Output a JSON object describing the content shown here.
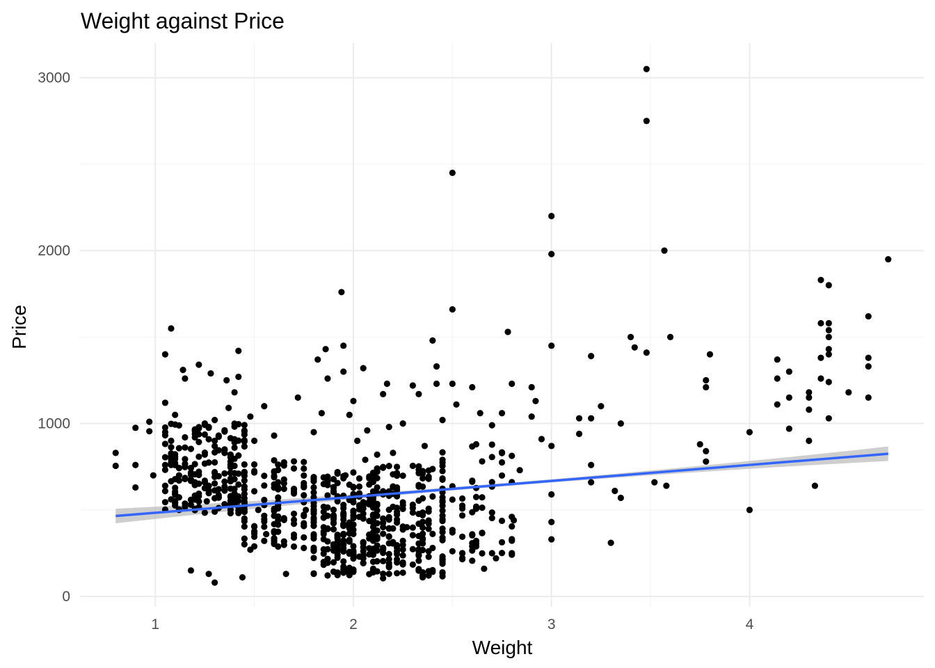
{
  "chart_data": {
    "type": "scatter",
    "title": "Weight against Price",
    "xlabel": "Weight",
    "ylabel": "Price",
    "xlim": [
      0.62,
      4.88
    ],
    "ylim": [
      -60,
      3200
    ],
    "x_ticks": [
      1,
      2,
      3,
      4
    ],
    "y_ticks": [
      0,
      1000,
      2000,
      3000
    ],
    "x_tick_labels": [
      "1",
      "2",
      "3",
      "4"
    ],
    "y_tick_labels": [
      "0",
      "1000",
      "2000",
      "3000"
    ],
    "grid": true,
    "theme": "minimal",
    "colors": {
      "points": "#000000",
      "fit_line": "#3366FF",
      "confidence_band": "#BEBEBE",
      "grid": "#EBEBEB"
    },
    "trend": {
      "method": "lm",
      "start": [
        0.8,
        465
      ],
      "end": [
        4.7,
        825
      ],
      "se_band_halfwidth_ends": 42,
      "se_band_halfwidth_center": 9
    },
    "points": [
      [
        0.8,
        830
      ],
      [
        0.8,
        755
      ],
      [
        0.9,
        975
      ],
      [
        0.9,
        760
      ],
      [
        0.9,
        630
      ],
      [
        0.97,
        1010
      ],
      [
        0.97,
        955
      ],
      [
        0.99,
        700
      ],
      [
        1.05,
        1400
      ],
      [
        1.05,
        1120
      ],
      [
        1.05,
        950
      ],
      [
        1.05,
        760
      ],
      [
        1.05,
        640
      ],
      [
        1.08,
        1550
      ],
      [
        1.1,
        1050
      ],
      [
        1.1,
        760
      ],
      [
        1.12,
        500
      ],
      [
        1.14,
        1310
      ],
      [
        1.15,
        1260
      ],
      [
        1.18,
        150
      ],
      [
        1.2,
        920
      ],
      [
        1.2,
        660
      ],
      [
        1.22,
        1340
      ],
      [
        1.22,
        580
      ],
      [
        1.25,
        1000
      ],
      [
        1.25,
        820
      ],
      [
        1.26,
        550
      ],
      [
        1.27,
        130
      ],
      [
        1.28,
        1290
      ],
      [
        1.3,
        1020
      ],
      [
        1.3,
        900
      ],
      [
        1.3,
        80
      ],
      [
        1.32,
        620
      ],
      [
        1.35,
        830
      ],
      [
        1.36,
        1250
      ],
      [
        1.37,
        1090
      ],
      [
        1.38,
        580
      ],
      [
        1.4,
        1180
      ],
      [
        1.42,
        1420
      ],
      [
        1.42,
        1270
      ],
      [
        1.44,
        110
      ],
      [
        1.45,
        720
      ],
      [
        1.48,
        1040
      ],
      [
        1.48,
        270
      ],
      [
        1.5,
        900
      ],
      [
        1.52,
        500
      ],
      [
        1.55,
        1100
      ],
      [
        1.56,
        360
      ],
      [
        1.6,
        930
      ],
      [
        1.6,
        320
      ],
      [
        1.62,
        620
      ],
      [
        1.66,
        130
      ],
      [
        1.7,
        420
      ],
      [
        1.72,
        1150
      ],
      [
        1.75,
        640
      ],
      [
        1.76,
        500
      ],
      [
        1.8,
        950
      ],
      [
        1.82,
        1370
      ],
      [
        1.84,
        1060
      ],
      [
        1.86,
        1430
      ],
      [
        1.87,
        1260
      ],
      [
        1.9,
        460
      ],
      [
        1.9,
        300
      ],
      [
        1.94,
        1760
      ],
      [
        1.95,
        1450
      ],
      [
        1.95,
        1300
      ],
      [
        1.96,
        700
      ],
      [
        1.98,
        1050
      ],
      [
        2.0,
        1130
      ],
      [
        2.02,
        900
      ],
      [
        2.05,
        1320
      ],
      [
        2.06,
        790
      ],
      [
        2.07,
        960
      ],
      [
        2.1,
        580
      ],
      [
        2.12,
        820
      ],
      [
        2.15,
        1170
      ],
      [
        2.17,
        1230
      ],
      [
        2.18,
        980
      ],
      [
        2.2,
        830
      ],
      [
        2.22,
        630
      ],
      [
        2.25,
        1000
      ],
      [
        2.27,
        400
      ],
      [
        2.3,
        1220
      ],
      [
        2.33,
        1170
      ],
      [
        2.36,
        870
      ],
      [
        2.4,
        1480
      ],
      [
        2.42,
        1330
      ],
      [
        2.42,
        1230
      ],
      [
        2.45,
        1020
      ],
      [
        2.5,
        2450
      ],
      [
        2.5,
        1660
      ],
      [
        2.5,
        1230
      ],
      [
        2.52,
        1110
      ],
      [
        2.55,
        250
      ],
      [
        2.6,
        1210
      ],
      [
        2.62,
        880
      ],
      [
        2.64,
        1060
      ],
      [
        2.66,
        160
      ],
      [
        2.7,
        990
      ],
      [
        2.72,
        220
      ],
      [
        2.75,
        1060
      ],
      [
        2.78,
        1530
      ],
      [
        2.8,
        1230
      ],
      [
        2.81,
        440
      ],
      [
        2.84,
        730
      ],
      [
        2.9,
        1210
      ],
      [
        2.9,
        1040
      ],
      [
        2.92,
        1130
      ],
      [
        2.95,
        910
      ],
      [
        3.0,
        2200
      ],
      [
        3.0,
        1980
      ],
      [
        3.0,
        1450
      ],
      [
        3.0,
        870
      ],
      [
        3.0,
        590
      ],
      [
        3.0,
        430
      ],
      [
        3.0,
        330
      ],
      [
        3.14,
        1030
      ],
      [
        3.14,
        940
      ],
      [
        3.2,
        1390
      ],
      [
        3.2,
        1030
      ],
      [
        3.2,
        760
      ],
      [
        3.2,
        660
      ],
      [
        3.25,
        1100
      ],
      [
        3.3,
        310
      ],
      [
        3.32,
        610
      ],
      [
        3.35,
        1000
      ],
      [
        3.35,
        570
      ],
      [
        3.4,
        1500
      ],
      [
        3.42,
        1440
      ],
      [
        3.48,
        3050
      ],
      [
        3.48,
        2750
      ],
      [
        3.48,
        1410
      ],
      [
        3.52,
        660
      ],
      [
        3.57,
        2000
      ],
      [
        3.58,
        640
      ],
      [
        3.6,
        1500
      ],
      [
        3.75,
        880
      ],
      [
        3.78,
        1250
      ],
      [
        3.78,
        1210
      ],
      [
        3.78,
        840
      ],
      [
        3.78,
        780
      ],
      [
        3.8,
        1400
      ],
      [
        4.0,
        950
      ],
      [
        4.0,
        500
      ],
      [
        4.14,
        1370
      ],
      [
        4.14,
        1260
      ],
      [
        4.14,
        1110
      ],
      [
        4.2,
        1300
      ],
      [
        4.2,
        1150
      ],
      [
        4.2,
        970
      ],
      [
        4.3,
        1180
      ],
      [
        4.3,
        1150
      ],
      [
        4.3,
        1080
      ],
      [
        4.3,
        900
      ],
      [
        4.33,
        640
      ],
      [
        4.36,
        1830
      ],
      [
        4.36,
        1580
      ],
      [
        4.36,
        1380
      ],
      [
        4.36,
        1260
      ],
      [
        4.4,
        1800
      ],
      [
        4.4,
        1580
      ],
      [
        4.4,
        1540
      ],
      [
        4.4,
        1500
      ],
      [
        4.4,
        1430
      ],
      [
        4.4,
        1400
      ],
      [
        4.4,
        1240
      ],
      [
        4.4,
        1030
      ],
      [
        4.5,
        1180
      ],
      [
        4.6,
        1620
      ],
      [
        4.6,
        1380
      ],
      [
        4.6,
        1330
      ],
      [
        4.6,
        1150
      ],
      [
        4.7,
        1950
      ]
    ],
    "clusters": [
      {
        "x_min": 1.05,
        "x_max": 1.45,
        "y_min": 480,
        "y_max": 1000,
        "n": 190
      },
      {
        "x_min": 1.45,
        "x_max": 1.8,
        "y_min": 280,
        "y_max": 800,
        "n": 110
      },
      {
        "x_min": 1.8,
        "x_max": 2.1,
        "y_min": 120,
        "y_max": 720,
        "n": 200
      },
      {
        "x_min": 2.1,
        "x_max": 2.45,
        "y_min": 100,
        "y_max": 760,
        "n": 200
      },
      {
        "x_min": 2.45,
        "x_max": 2.8,
        "y_min": 200,
        "y_max": 900,
        "n": 70
      }
    ]
  }
}
